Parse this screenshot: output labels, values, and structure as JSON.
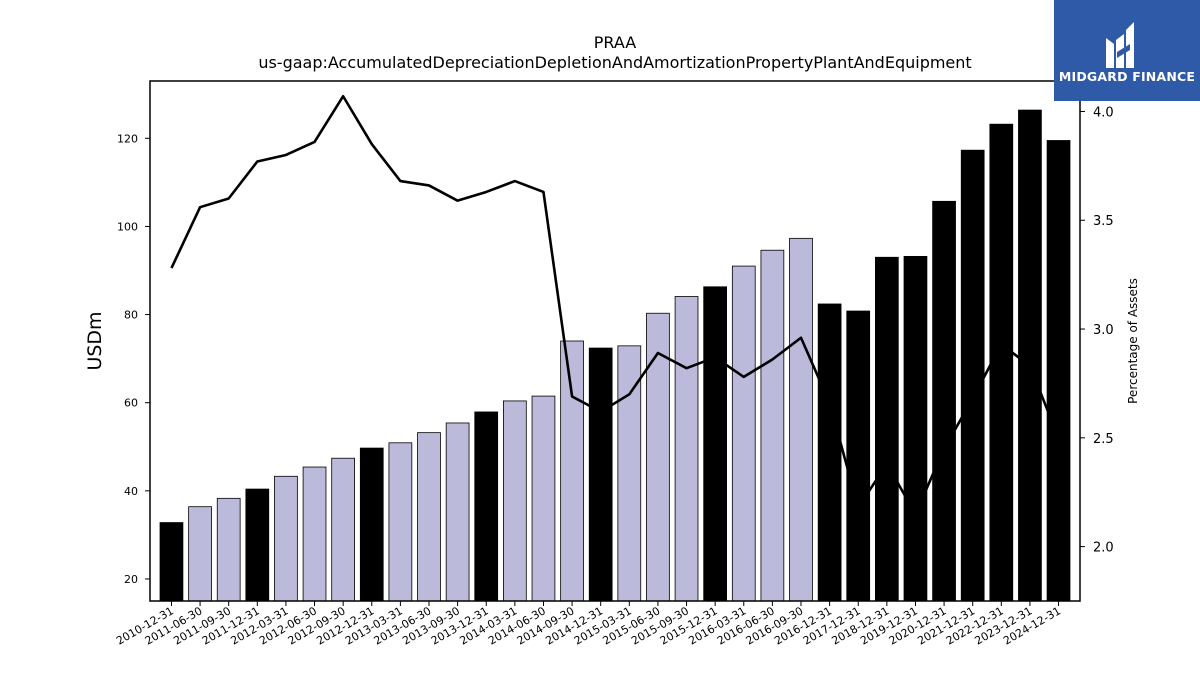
{
  "logo": {
    "text": "MIDGARD FINANCE"
  },
  "chart_data": {
    "type": "bar",
    "title": "PRAA",
    "subtitle": "us-gaap:AccumulatedDepreciationDepletionAndAmortizationPropertyPlantAndEquipment",
    "ylabel": "USDm",
    "y2label": "Percentage of Assets",
    "ylim": [
      15,
      133
    ],
    "y2lim": [
      1.75,
      4.14
    ],
    "yticks": [
      20,
      40,
      60,
      80,
      100,
      120
    ],
    "y2ticks": [
      2.0,
      2.5,
      3.0,
      3.5,
      4.0
    ],
    "y2tick_labels": [
      "2.0",
      "2.5",
      "3.0",
      "3.5",
      "4.0"
    ],
    "categories": [
      "2010-12-31",
      "2011-06-30",
      "2011-09-30",
      "2011-12-31",
      "2012-03-31",
      "2012-06-30",
      "2012-09-30",
      "2012-12-31",
      "2013-03-31",
      "2013-06-30",
      "2013-09-30",
      "2013-12-31",
      "2014-03-31",
      "2014-06-30",
      "2014-09-30",
      "2014-12-31",
      "2015-03-31",
      "2015-06-30",
      "2015-09-30",
      "2015-12-31",
      "2016-03-31",
      "2016-06-30",
      "2016-09-30",
      "2016-12-31",
      "2017-12-31",
      "2018-12-31",
      "2019-12-31",
      "2020-12-31",
      "2021-12-31",
      "2022-12-31",
      "2023-12-31",
      "2024-12-31"
    ],
    "bar_values": [
      32.8,
      36.4,
      38.3,
      40.4,
      43.3,
      45.4,
      47.4,
      49.7,
      50.9,
      53.2,
      55.4,
      57.9,
      60.4,
      61.5,
      74.0,
      72.4,
      72.9,
      80.3,
      84.1,
      86.3,
      91.0,
      94.6,
      97.3,
      82.4,
      80.8,
      93.0,
      93.2,
      105.7,
      117.3,
      123.2,
      126.4,
      119.5
    ],
    "bar_kinds": [
      "annual",
      "quarterly",
      "quarterly",
      "annual",
      "quarterly",
      "quarterly",
      "quarterly",
      "annual",
      "quarterly",
      "quarterly",
      "quarterly",
      "annual",
      "quarterly",
      "quarterly",
      "quarterly",
      "annual",
      "quarterly",
      "quarterly",
      "quarterly",
      "annual",
      "quarterly",
      "quarterly",
      "quarterly",
      "annual",
      "annual",
      "annual",
      "annual",
      "annual",
      "annual",
      "annual",
      "annual",
      "annual"
    ],
    "line_values": [
      3.28,
      3.56,
      3.6,
      3.77,
      3.8,
      3.86,
      4.07,
      3.85,
      3.68,
      3.66,
      3.59,
      3.63,
      3.68,
      3.63,
      2.69,
      2.62,
      2.7,
      2.89,
      2.82,
      2.87,
      2.78,
      2.86,
      2.96,
      2.66,
      2.18,
      2.38,
      2.15,
      2.45,
      2.68,
      2.93,
      2.83,
      2.5
    ],
    "colors": {
      "annual": "#000000",
      "quarterly": "#bcbadb",
      "line": "#000000"
    },
    "grid": false,
    "legend": "none"
  }
}
